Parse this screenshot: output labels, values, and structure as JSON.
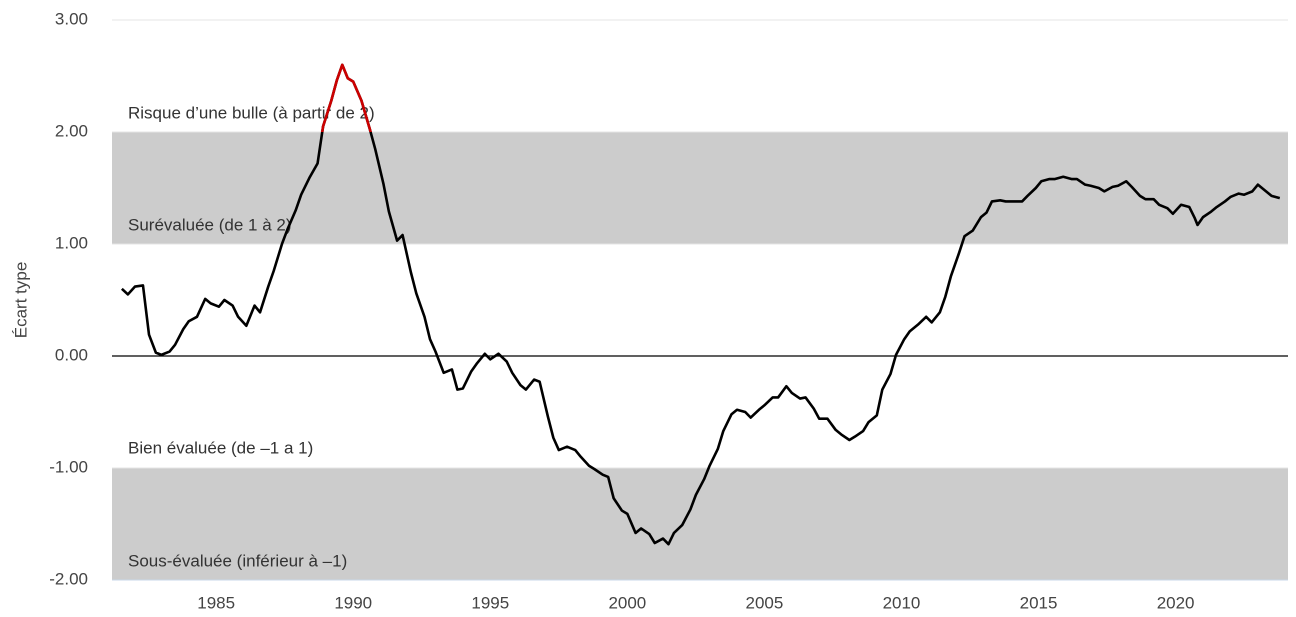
{
  "chart_data": {
    "type": "line",
    "y_label": "Écart type",
    "annotations": [
      "Risque d’une bulle (à partir de 2)",
      "Surévaluée (de 1 à 2)",
      "Bien évaluée (de –1 a 1)",
      "Sous-évaluée (inférieur à –1)"
    ],
    "x": [
      1981.56,
      1981.78,
      1982.04,
      1982.33,
      1982.55,
      1982.8,
      1983.0,
      1983.3,
      1983.5,
      1983.8,
      1984.0,
      1984.3,
      1984.6,
      1984.8,
      1985.1,
      1985.3,
      1985.6,
      1985.8,
      1986.1,
      1986.4,
      1986.6,
      1986.9,
      1987.1,
      1987.4,
      1987.6,
      1987.9,
      1988.1,
      1988.4,
      1988.7,
      1988.9,
      1989.2,
      1989.4,
      1989.6,
      1989.8,
      1990.0,
      1990.3,
      1990.6,
      1990.8,
      1991.1,
      1991.3,
      1991.6,
      1991.8,
      1992.1,
      1992.3,
      1992.6,
      1992.8,
      1993.0,
      1993.3,
      1993.6,
      1993.8,
      1994.0,
      1994.3,
      1994.5,
      1994.8,
      1995.0,
      1995.3,
      1995.6,
      1995.8,
      1996.1,
      1996.3,
      1996.6,
      1996.8,
      1997.1,
      1997.3,
      1997.5,
      1997.8,
      1998.1,
      1998.3,
      1998.6,
      1998.8,
      1999.1,
      1999.3,
      1999.5,
      1999.8,
      2000.0,
      2000.3,
      2000.5,
      2000.8,
      2001.0,
      2001.3,
      2001.5,
      2001.7,
      2002.0,
      2002.3,
      2002.5,
      2002.8,
      2003.0,
      2003.3,
      2003.5,
      2003.8,
      2004.0,
      2004.3,
      2004.5,
      2004.8,
      2005.0,
      2005.3,
      2005.5,
      2005.8,
      2006.0,
      2006.3,
      2006.5,
      2006.8,
      2007.0,
      2007.3,
      2007.6,
      2007.8,
      2008.1,
      2008.3,
      2008.6,
      2008.8,
      2009.1,
      2009.3,
      2009.6,
      2009.8,
      2010.1,
      2010.3,
      2010.6,
      2010.9,
      2011.1,
      2011.4,
      2011.6,
      2011.8,
      2012.1,
      2012.3,
      2012.6,
      2012.9,
      2013.1,
      2013.3,
      2013.6,
      2013.8,
      2014.1,
      2014.4,
      2014.6,
      2014.9,
      2015.1,
      2015.4,
      2015.6,
      2015.9,
      2016.2,
      2016.4,
      2016.7,
      2016.9,
      2017.2,
      2017.4,
      2017.7,
      2017.9,
      2018.2,
      2018.4,
      2018.7,
      2018.9,
      2019.2,
      2019.4,
      2019.7,
      2019.9,
      2020.2,
      2020.5,
      2020.7,
      2020.8,
      2021.0,
      2021.3,
      2021.5,
      2021.8,
      2022.0,
      2022.3,
      2022.5,
      2022.8,
      2023.0,
      2023.3,
      2023.5,
      2023.8
    ],
    "series": [
      {
        "color": "#000000",
        "values": [
          0.6,
          0.55,
          0.62,
          0.63,
          0.19,
          0.03,
          0.01,
          0.04,
          0.1,
          0.24,
          0.31,
          0.35,
          0.51,
          0.47,
          0.44,
          0.5,
          0.45,
          0.35,
          0.27,
          0.45,
          0.39,
          0.62,
          0.76,
          1.0,
          1.13,
          1.3,
          1.44,
          1.59,
          1.72,
          2.05,
          2.28,
          2.46,
          2.6,
          2.48,
          2.45,
          2.28,
          2.03,
          1.85,
          1.54,
          1.29,
          1.03,
          1.08,
          0.75,
          0.56,
          0.35,
          0.15,
          0.04,
          -0.15,
          -0.12,
          -0.3,
          -0.29,
          -0.14,
          -0.07,
          0.02,
          -0.03,
          0.02,
          -0.05,
          -0.15,
          -0.26,
          -0.3,
          -0.21,
          -0.23,
          -0.54,
          -0.73,
          -0.84,
          -0.81,
          -0.84,
          -0.9,
          -0.98,
          -1.01,
          -1.06,
          -1.08,
          -1.27,
          -1.38,
          -1.41,
          -1.58,
          -1.54,
          -1.59,
          -1.67,
          -1.63,
          -1.68,
          -1.58,
          -1.51,
          -1.37,
          -1.24,
          -1.1,
          -0.98,
          -0.83,
          -0.67,
          -0.52,
          -0.48,
          -0.5,
          -0.55,
          -0.48,
          -0.44,
          -0.37,
          -0.37,
          -0.27,
          -0.33,
          -0.38,
          -0.37,
          -0.47,
          -0.56,
          -0.56,
          -0.66,
          -0.7,
          -0.75,
          -0.72,
          -0.67,
          -0.59,
          -0.53,
          -0.3,
          -0.16,
          0.01,
          0.15,
          0.22,
          0.28,
          0.35,
          0.3,
          0.39,
          0.53,
          0.71,
          0.92,
          1.07,
          1.12,
          1.24,
          1.28,
          1.38,
          1.39,
          1.38,
          1.38,
          1.38,
          1.43,
          1.5,
          1.56,
          1.58,
          1.58,
          1.6,
          1.58,
          1.58,
          1.53,
          1.52,
          1.5,
          1.47,
          1.51,
          1.52,
          1.56,
          1.51,
          1.43,
          1.4,
          1.4,
          1.35,
          1.32,
          1.27,
          1.35,
          1.33,
          1.23,
          1.17,
          1.24,
          1.29,
          1.33,
          1.38,
          1.42,
          1.45,
          1.44,
          1.47,
          1.53,
          1.47,
          1.43,
          1.41
        ]
      }
    ],
    "highlight": {
      "above": 2,
      "color": "#cc0000"
    },
    "bands": [
      {
        "range": [
          1,
          2
        ],
        "color": "#cccccc"
      },
      {
        "range": [
          -2,
          -1
        ],
        "color": "#cccccc"
      }
    ],
    "xlim": [
      1981.2,
      2024.1
    ],
    "xticks": [
      1985,
      1990,
      1995,
      2000,
      2005,
      2010,
      2015,
      2020
    ],
    "ylim": [
      -2,
      3
    ],
    "yticks": [
      {
        "value": -2,
        "label": "-2.00"
      },
      {
        "value": -1,
        "label": "-1.00"
      },
      {
        "value": 0,
        "label": "0.00"
      },
      {
        "value": 1,
        "label": "1.00"
      },
      {
        "value": 2,
        "label": "2.00"
      },
      {
        "value": 3,
        "label": "3.00"
      }
    ],
    "grid": true
  }
}
